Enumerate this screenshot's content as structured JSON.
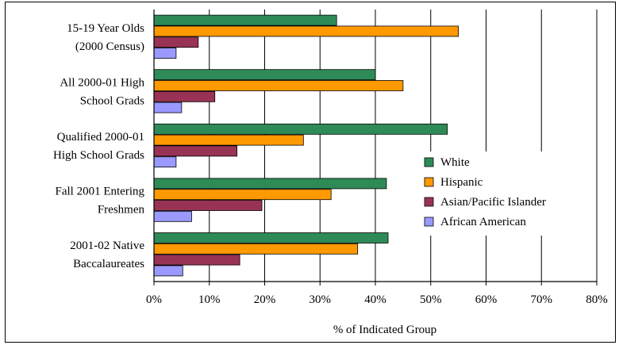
{
  "chart_data": {
    "type": "bar",
    "orientation": "horizontal",
    "categories": [
      [
        "15-19 Year Olds",
        "(2000 Census)"
      ],
      [
        "All 2000-01 High",
        "School Grads"
      ],
      [
        "Qualified 2000-01",
        "High School Grads"
      ],
      [
        "Fall 2001 Entering",
        "Freshmen"
      ],
      [
        "2001-02 Native",
        "Baccalaureates"
      ]
    ],
    "series": [
      {
        "name": "White",
        "color": "#2e8b57",
        "values": [
          33,
          40,
          53,
          42,
          42.3
        ]
      },
      {
        "name": "Hispanic",
        "color": "#ff9900",
        "values": [
          55,
          45,
          27,
          32,
          36.8
        ]
      },
      {
        "name": "Asian/Pacific Islander",
        "color": "#993355",
        "values": [
          8,
          11,
          15,
          19.5,
          15.5
        ]
      },
      {
        "name": "African American",
        "color": "#9999ff",
        "values": [
          4,
          5,
          4,
          6.8,
          5.2
        ]
      }
    ],
    "xlabel": "% of Indicated Group",
    "xlim": [
      0,
      80
    ],
    "xticks": [
      "0%",
      "10%",
      "20%",
      "30%",
      "40%",
      "50%",
      "60%",
      "70%",
      "80%"
    ],
    "grid": true,
    "legend_position": "right"
  }
}
